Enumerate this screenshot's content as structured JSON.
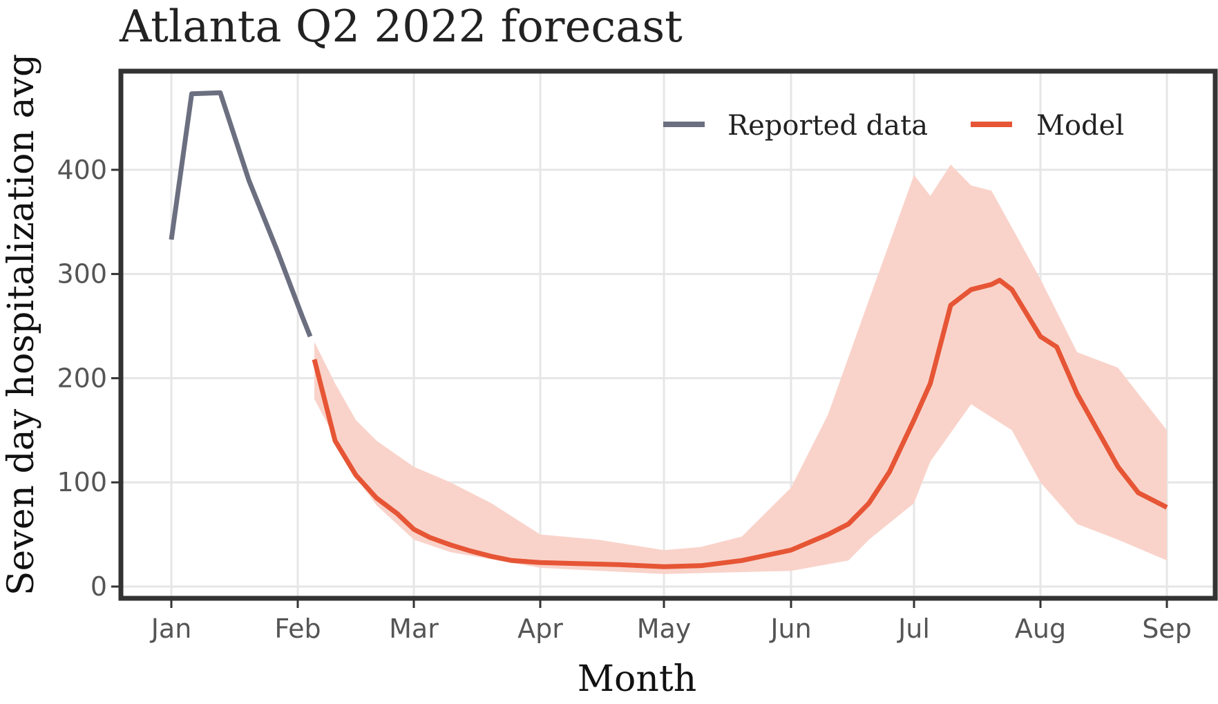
{
  "chart_data": {
    "type": "line",
    "title": "Atlanta Q2 2022 forecast",
    "xlabel": "Month",
    "ylabel": "Seven day hospitalization avg",
    "x_ticks": [
      "Jan",
      "Feb",
      "Mar",
      "Apr",
      "May",
      "Jun",
      "Jul",
      "Aug",
      "Sep"
    ],
    "y_ticks": [
      0,
      100,
      200,
      300,
      400
    ],
    "ylim": [
      -12,
      495
    ],
    "grid": true,
    "legend_position": "top-right",
    "series": [
      {
        "name": "Reported data",
        "color": "#6b6f80",
        "points": [
          [
            "Jan 1",
            333
          ],
          [
            "Jan 6",
            473
          ],
          [
            "Jan 13",
            474
          ],
          [
            "Jan 20",
            390
          ],
          [
            "Jan 27",
            322
          ],
          [
            "Feb 2",
            260
          ],
          [
            "Feb 4",
            240
          ]
        ]
      },
      {
        "name": "Model",
        "color": "#e65535",
        "band_color": "#f9d3ca",
        "points": [
          [
            "Feb 5",
            218
          ],
          [
            "Feb 10",
            140
          ],
          [
            "Feb 15",
            107
          ],
          [
            "Feb 20",
            85
          ],
          [
            "Feb 25",
            70
          ],
          [
            "Mar 1",
            55
          ],
          [
            "Mar 5",
            47
          ],
          [
            "Mar 10",
            40
          ],
          [
            "Mar 15",
            34
          ],
          [
            "Mar 20",
            29
          ],
          [
            "Mar 25",
            25
          ],
          [
            "Apr 1",
            23
          ],
          [
            "Apr 10",
            22
          ],
          [
            "Apr 20",
            21
          ],
          [
            "May 1",
            19
          ],
          [
            "May 10",
            20
          ],
          [
            "May 20",
            25
          ],
          [
            "Jun 1",
            35
          ],
          [
            "Jun 10",
            50
          ],
          [
            "Jun 15",
            60
          ],
          [
            "Jun 20",
            80
          ],
          [
            "Jun 25",
            110
          ],
          [
            "Jul 1",
            160
          ],
          [
            "Jul 5",
            195
          ],
          [
            "Jul 10",
            270
          ],
          [
            "Jul 15",
            285
          ],
          [
            "Jul 20",
            290
          ],
          [
            "Jul 22",
            294
          ],
          [
            "Jul 25",
            285
          ],
          [
            "Aug 1",
            240
          ],
          [
            "Aug 5",
            230
          ],
          [
            "Aug 10",
            185
          ],
          [
            "Aug 15",
            150
          ],
          [
            "Aug 20",
            115
          ],
          [
            "Aug 25",
            90
          ],
          [
            "Sep 1",
            76
          ]
        ],
        "band_upper": [
          [
            "Feb 5",
            235
          ],
          [
            "Feb 10",
            195
          ],
          [
            "Feb 15",
            160
          ],
          [
            "Feb 20",
            140
          ],
          [
            "Mar 1",
            115
          ],
          [
            "Mar 10",
            100
          ],
          [
            "Mar 20",
            80
          ],
          [
            "Apr 1",
            50
          ],
          [
            "Apr 15",
            45
          ],
          [
            "May 1",
            35
          ],
          [
            "May 10",
            38
          ],
          [
            "May 20",
            48
          ],
          [
            "Jun 1",
            95
          ],
          [
            "Jun 10",
            165
          ],
          [
            "Jun 20",
            275
          ],
          [
            "Jul 1",
            395
          ],
          [
            "Jul 5",
            375
          ],
          [
            "Jul 10",
            405
          ],
          [
            "Jul 15",
            385
          ],
          [
            "Jul 20",
            380
          ],
          [
            "Aug 1",
            295
          ],
          [
            "Aug 10",
            225
          ],
          [
            "Aug 20",
            210
          ],
          [
            "Sep 1",
            150
          ]
        ],
        "band_lower": [
          [
            "Feb 5",
            180
          ],
          [
            "Feb 15",
            105
          ],
          [
            "Feb 20",
            78
          ],
          [
            "Mar 1",
            45
          ],
          [
            "Mar 10",
            33
          ],
          [
            "Apr 1",
            18
          ],
          [
            "May 1",
            12
          ],
          [
            "Jun 1",
            15
          ],
          [
            "Jun 15",
            25
          ],
          [
            "Jun 20",
            45
          ],
          [
            "Jul 1",
            80
          ],
          [
            "Jul 5",
            120
          ],
          [
            "Jul 15",
            175
          ],
          [
            "Jul 25",
            150
          ],
          [
            "Aug 1",
            100
          ],
          [
            "Aug 10",
            60
          ],
          [
            "Aug 20",
            45
          ],
          [
            "Sep 1",
            25
          ]
        ]
      }
    ]
  }
}
